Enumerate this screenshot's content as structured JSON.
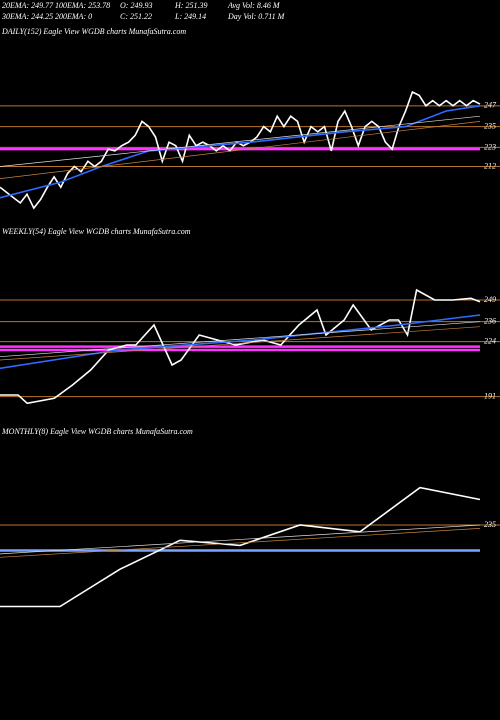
{
  "header": {
    "lines": [
      [
        "20EMA: 249.77",
        "100EMA: 253.78",
        "O: 249.93",
        "H: 251.39",
        "Avg Vol: 8.46  M"
      ],
      [
        "30EMA: 244.25",
        "200EMA: 0",
        "C: 251.22",
        "L: 249.14",
        "Day Vol: 0.711 M"
      ]
    ]
  },
  "chart_data": [
    {
      "type": "line",
      "title": "DAILY(152) Eagle  View  WGDB charts MunafaSutra.com",
      "xlim": [
        0,
        71
      ],
      "ylim": [
        184,
        285
      ],
      "levels": [
        {
          "value": 247,
          "color": "#b8742a"
        },
        {
          "value": 235,
          "color": "#b8742a"
        },
        {
          "value": 223,
          "color": "#b8742a"
        },
        {
          "value": 212,
          "color": "#b8742a"
        }
      ],
      "bands": [
        {
          "value": 222,
          "color": "#ff33ff"
        }
      ],
      "series": [
        {
          "color": "#ffffff",
          "width": 1.6,
          "x": [
            0,
            1,
            2,
            3,
            4,
            5,
            6,
            7,
            8,
            9,
            10,
            11,
            12,
            13,
            14,
            15,
            16,
            17,
            18,
            19,
            20,
            21,
            22,
            23,
            24,
            25,
            26,
            27,
            28,
            29,
            30,
            31,
            32,
            33,
            34,
            35,
            36,
            37,
            38,
            39,
            40,
            41,
            42,
            43,
            44,
            45,
            46,
            47,
            48,
            49,
            50,
            51,
            52,
            53,
            54,
            55,
            56,
            57,
            58,
            59,
            60,
            61,
            62,
            63,
            64,
            65,
            66,
            67,
            68,
            69,
            70,
            71
          ],
          "values": [
            200,
            197,
            194,
            191,
            196,
            188,
            193,
            200,
            206,
            200,
            208,
            212,
            209,
            215,
            212,
            215,
            222,
            221,
            224,
            226,
            230,
            238,
            235,
            229,
            215,
            226,
            224,
            215,
            230,
            224,
            226,
            224,
            221,
            224,
            221,
            226,
            224,
            226,
            229,
            235,
            232,
            241,
            235,
            241,
            238,
            226,
            235,
            232,
            235,
            221,
            238,
            244,
            235,
            224,
            235,
            238,
            235,
            226,
            222,
            235,
            244,
            255,
            253,
            247,
            250,
            247,
            250,
            247,
            250,
            247,
            250,
            248
          ]
        },
        {
          "color": "#2f6bff",
          "width": 1.6,
          "x": [
            0,
            9,
            15,
            22,
            37,
            51,
            60,
            66,
            71
          ],
          "values": [
            194,
            203,
            212,
            221,
            226,
            232,
            235,
            244,
            247
          ]
        },
        {
          "color": "#dddddd",
          "width": 0.7,
          "x": [
            0,
            71
          ],
          "values": [
            212,
            241
          ]
        },
        {
          "color": "#c8843a",
          "width": 0.7,
          "x": [
            0,
            71
          ],
          "values": [
            205,
            238
          ]
        }
      ]
    },
    {
      "type": "line",
      "title": "WEEKLY(54) Eagle  View  WGDB charts MunafaSutra.com",
      "xlim": [
        0,
        53
      ],
      "ylim": [
        183,
        285
      ],
      "levels": [
        {
          "value": 249,
          "color": "#b8742a"
        },
        {
          "value": 236,
          "color": "#b8742a"
        },
        {
          "value": 224,
          "color": "#b8742a"
        },
        {
          "value": 191,
          "color": "#b8742a"
        }
      ],
      "bands": [
        {
          "value": 221,
          "color": "#ff33ff"
        },
        {
          "value": 219,
          "color": "#ff33ff"
        }
      ],
      "series": [
        {
          "color": "#ffffff",
          "width": 1.6,
          "x": [
            0,
            2,
            3,
            6,
            8,
            10,
            12,
            14,
            15,
            17,
            19,
            20,
            22,
            24,
            26,
            29,
            31,
            33,
            35,
            36,
            38,
            39,
            41,
            43,
            44,
            45,
            46,
            48,
            50,
            52,
            53
          ],
          "values": [
            192,
            192,
            187,
            190,
            198,
            207,
            219,
            222,
            222,
            234,
            210,
            213,
            228,
            225,
            222,
            225,
            222,
            234,
            243,
            228,
            237,
            246,
            231,
            237,
            237,
            228,
            255,
            249,
            249,
            250,
            248
          ]
        },
        {
          "color": "#2f6bff",
          "width": 1.6,
          "x": [
            0,
            13,
            28,
            44,
            53
          ],
          "values": [
            208,
            219,
            225,
            234,
            240
          ]
        },
        {
          "color": "#dddddd",
          "width": 0.7,
          "x": [
            0,
            53
          ],
          "values": [
            215,
            236
          ]
        },
        {
          "color": "#c8843a",
          "width": 0.7,
          "x": [
            0,
            53
          ],
          "values": [
            213,
            233
          ]
        }
      ]
    },
    {
      "type": "line",
      "title": "MONTHLY(8) Eagle  View  WGDB charts MunafaSutra.com",
      "xlim": [
        0,
        8
      ],
      "ylim": [
        132,
        285
      ],
      "levels": [
        {
          "value": 235,
          "color": "#b8742a"
        }
      ],
      "bands": [
        {
          "value": 220,
          "color": "#7aa4ff"
        }
      ],
      "series": [
        {
          "color": "#ffffff",
          "width": 1.6,
          "x": [
            0,
            1,
            2,
            3,
            4,
            5,
            6,
            7,
            8
          ],
          "values": [
            187,
            187,
            209,
            226,
            223,
            235,
            231,
            257,
            250
          ]
        },
        {
          "color": "#dddddd",
          "width": 0.7,
          "x": [
            0,
            8
          ],
          "values": [
            218,
            235
          ]
        },
        {
          "color": "#c8843a",
          "width": 0.7,
          "x": [
            0,
            8
          ],
          "values": [
            216,
            233
          ]
        }
      ]
    }
  ]
}
